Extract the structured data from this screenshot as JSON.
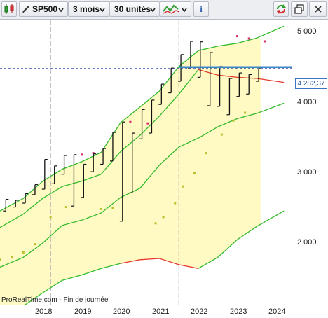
{
  "toolbar": {
    "instrument": "SP500",
    "period": "3 mois",
    "units": "30 unités",
    "indicator_icon": "chart-style-icon",
    "info_label": "i",
    "refresh_icon": "refresh-icon",
    "restore_icon": "restore-window-icon",
    "close_icon": "close-icon"
  },
  "colors": {
    "band_fill": "#fffac4",
    "band_line": "#33bb2a",
    "band_line_low": "#e63a2c",
    "candles": "#111111",
    "dots_upper": "#d62a6e",
    "dots_lower": "#b8c02c",
    "price_line": "#3b87c8",
    "dashed_vertical": "#b0b0b0"
  },
  "chart_data": {
    "type": "line",
    "instrument": "SP500",
    "x_ticks": [
      "2018",
      "2019",
      "2020",
      "2021",
      "2022",
      "2023",
      "2024"
    ],
    "y_ticks": [
      "5 000",
      "4 000",
      "3 000",
      "2 000"
    ],
    "y_scale": "log",
    "current_price": "4 282,37",
    "current_price_value": 4282.37,
    "footer": "ProRealTime.com - Fin de journée",
    "dashed_vertical_years": [
      2018.2,
      2021.5
    ],
    "candles": [
      {
        "t": 2017.05,
        "low": 2300,
        "high": 2420
      },
      {
        "t": 2017.3,
        "low": 2340,
        "high": 2410
      },
      {
        "t": 2017.55,
        "low": 2380,
        "high": 2480
      },
      {
        "t": 2017.8,
        "low": 2470,
        "high": 2580
      },
      {
        "t": 2018.05,
        "low": 2530,
        "high": 2880
      },
      {
        "t": 2018.3,
        "low": 2590,
        "high": 2800
      },
      {
        "t": 2018.55,
        "low": 2700,
        "high": 2930
      },
      {
        "t": 2018.8,
        "low": 2350,
        "high": 2940
      },
      {
        "t": 2019.05,
        "low": 2440,
        "high": 2820
      },
      {
        "t": 2019.3,
        "low": 2730,
        "high": 2950
      },
      {
        "t": 2019.55,
        "low": 2820,
        "high": 3020
      },
      {
        "t": 2019.8,
        "low": 2860,
        "high": 3240
      },
      {
        "t": 2020.05,
        "low": 2200,
        "high": 3390
      },
      {
        "t": 2020.3,
        "low": 2490,
        "high": 3230
      },
      {
        "t": 2020.55,
        "low": 3150,
        "high": 3580
      },
      {
        "t": 2020.8,
        "low": 3230,
        "high": 3730
      },
      {
        "t": 2021.05,
        "low": 3660,
        "high": 4000
      },
      {
        "t": 2021.3,
        "low": 3850,
        "high": 4290
      },
      {
        "t": 2021.55,
        "low": 4050,
        "high": 4550
      },
      {
        "t": 2021.8,
        "low": 4280,
        "high": 4820
      },
      {
        "t": 2022.05,
        "low": 4120,
        "high": 4810
      },
      {
        "t": 2022.3,
        "low": 3640,
        "high": 4590
      },
      {
        "t": 2022.55,
        "low": 3630,
        "high": 4320
      },
      {
        "t": 2022.8,
        "low": 3500,
        "high": 4100
      },
      {
        "t": 2023.05,
        "low": 3790,
        "high": 4200
      },
      {
        "t": 2023.3,
        "low": 3830,
        "high": 4170
      },
      {
        "t": 2023.55,
        "low": 4050,
        "high": 4280
      }
    ],
    "band_upper": [
      [
        2016.9,
        2300
      ],
      [
        2017.5,
        2430
      ],
      [
        2018.0,
        2620
      ],
      [
        2018.5,
        2760
      ],
      [
        2019.0,
        2850
      ],
      [
        2019.5,
        2970
      ],
      [
        2020.0,
        3380
      ],
      [
        2020.5,
        3620
      ],
      [
        2021.0,
        3880
      ],
      [
        2021.5,
        4320
      ],
      [
        2022.0,
        4630
      ],
      [
        2022.5,
        4720
      ],
      [
        2023.0,
        4780
      ],
      [
        2023.5,
        4890
      ],
      [
        2024.2,
        5150
      ]
    ],
    "band_middle": [
      [
        2016.9,
        2140
      ],
      [
        2017.5,
        2270
      ],
      [
        2018.0,
        2430
      ],
      [
        2018.5,
        2560
      ],
      [
        2019.0,
        2620
      ],
      [
        2019.5,
        2700
      ],
      [
        2020.0,
        2980
      ],
      [
        2020.5,
        3200
      ],
      [
        2021.0,
        3480
      ],
      [
        2021.5,
        3830
      ],
      [
        2022.0,
        4260
      ],
      [
        2022.5,
        4160
      ],
      [
        2023.0,
        4120
      ],
      [
        2023.5,
        4100
      ],
      [
        2024.2,
        4030
      ]
    ],
    "band_lower_mid": [
      [
        2016.9,
        1800
      ],
      [
        2017.5,
        1880
      ],
      [
        2018.0,
        2000
      ],
      [
        2018.5,
        2160
      ],
      [
        2019.0,
        2210
      ],
      [
        2019.5,
        2280
      ],
      [
        2020.0,
        2440
      ],
      [
        2020.5,
        2540
      ],
      [
        2021.0,
        2810
      ],
      [
        2021.5,
        3040
      ],
      [
        2022.0,
        3160
      ],
      [
        2022.5,
        3320
      ],
      [
        2023.0,
        3440
      ],
      [
        2023.5,
        3520
      ],
      [
        2024.2,
        3680
      ]
    ],
    "band_lower": [
      [
        2016.9,
        1440
      ],
      [
        2017.5,
        1520
      ],
      [
        2018.0,
        1610
      ],
      [
        2018.5,
        1700
      ],
      [
        2019.0,
        1740
      ],
      [
        2019.5,
        1790
      ],
      [
        2020.0,
        1830
      ],
      [
        2020.5,
        1860
      ],
      [
        2021.0,
        1870
      ],
      [
        2021.5,
        1820
      ],
      [
        2022.0,
        1790
      ],
      [
        2022.5,
        1880
      ],
      [
        2023.0,
        2030
      ],
      [
        2023.5,
        2150
      ],
      [
        2024.2,
        2300
      ]
    ],
    "dots_upper": [
      [
        2019.0,
        2940
      ],
      [
        2019.3,
        2960
      ],
      [
        2020.25,
        3390
      ],
      [
        2020.7,
        3370
      ],
      [
        2023.0,
        4930
      ],
      [
        2023.3,
        4880
      ],
      [
        2023.7,
        4820
      ]
    ],
    "dots_lower": [
      [
        2016.9,
        1860
      ],
      [
        2017.2,
        1880
      ],
      [
        2017.5,
        1920
      ],
      [
        2017.8,
        1990
      ],
      [
        2018.2,
        2240
      ],
      [
        2018.6,
        2340
      ],
      [
        2019.5,
        2320
      ],
      [
        2019.8,
        2330
      ],
      [
        2020.9,
        2180
      ],
      [
        2021.1,
        2240
      ],
      [
        2021.4,
        2380
      ],
      [
        2021.6,
        2560
      ],
      [
        2021.9,
        2710
      ],
      [
        2022.2,
        2960
      ],
      [
        2022.6,
        3210
      ],
      [
        2022.9,
        3410
      ],
      [
        2023.2,
        3530
      ]
    ]
  }
}
